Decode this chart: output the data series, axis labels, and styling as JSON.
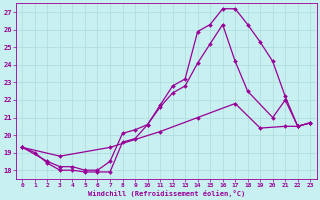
{
  "title": "",
  "xlabel": "Windchill (Refroidissement éolien,°C)",
  "ylabel": "",
  "bg_color": "#c8f0f0",
  "line_color": "#990099",
  "grid_color": "#b0dede",
  "xlim": [
    -0.5,
    23.5
  ],
  "ylim": [
    17.5,
    27.5
  ],
  "xticks": [
    0,
    1,
    2,
    3,
    4,
    5,
    6,
    7,
    8,
    9,
    10,
    11,
    12,
    13,
    14,
    15,
    16,
    17,
    18,
    19,
    20,
    21,
    22,
    23
  ],
  "yticks": [
    18,
    19,
    20,
    21,
    22,
    23,
    24,
    25,
    26,
    27
  ],
  "line1_x": [
    0,
    1,
    2,
    3,
    4,
    5,
    6,
    7,
    8,
    9,
    10,
    11,
    12,
    13,
    14,
    15,
    16,
    17,
    18,
    19,
    20,
    21,
    22,
    23
  ],
  "line1_y": [
    19.3,
    19.0,
    18.4,
    18.0,
    18.0,
    17.9,
    17.9,
    17.9,
    19.6,
    19.8,
    20.6,
    21.7,
    22.8,
    23.2,
    25.9,
    26.3,
    27.2,
    27.2,
    26.3,
    25.3,
    24.2,
    22.2,
    20.5,
    20.7
  ],
  "line2_x": [
    0,
    2,
    3,
    4,
    5,
    6,
    7,
    8,
    9,
    10,
    11,
    12,
    13,
    14,
    15,
    16,
    17,
    18,
    20,
    21,
    22,
    23
  ],
  "line2_y": [
    19.3,
    18.5,
    18.2,
    18.2,
    18.0,
    18.0,
    18.5,
    20.1,
    20.3,
    20.6,
    21.6,
    22.4,
    22.8,
    24.1,
    25.2,
    26.3,
    24.2,
    22.5,
    21.0,
    22.0,
    20.5,
    20.7
  ],
  "line3_x": [
    0,
    3,
    7,
    11,
    14,
    17,
    19,
    21,
    22,
    23
  ],
  "line3_y": [
    19.3,
    18.8,
    19.3,
    20.2,
    21.0,
    21.8,
    20.4,
    20.5,
    20.5,
    20.7
  ],
  "marker": "D",
  "markersize": 2.0,
  "linewidth": 0.9
}
